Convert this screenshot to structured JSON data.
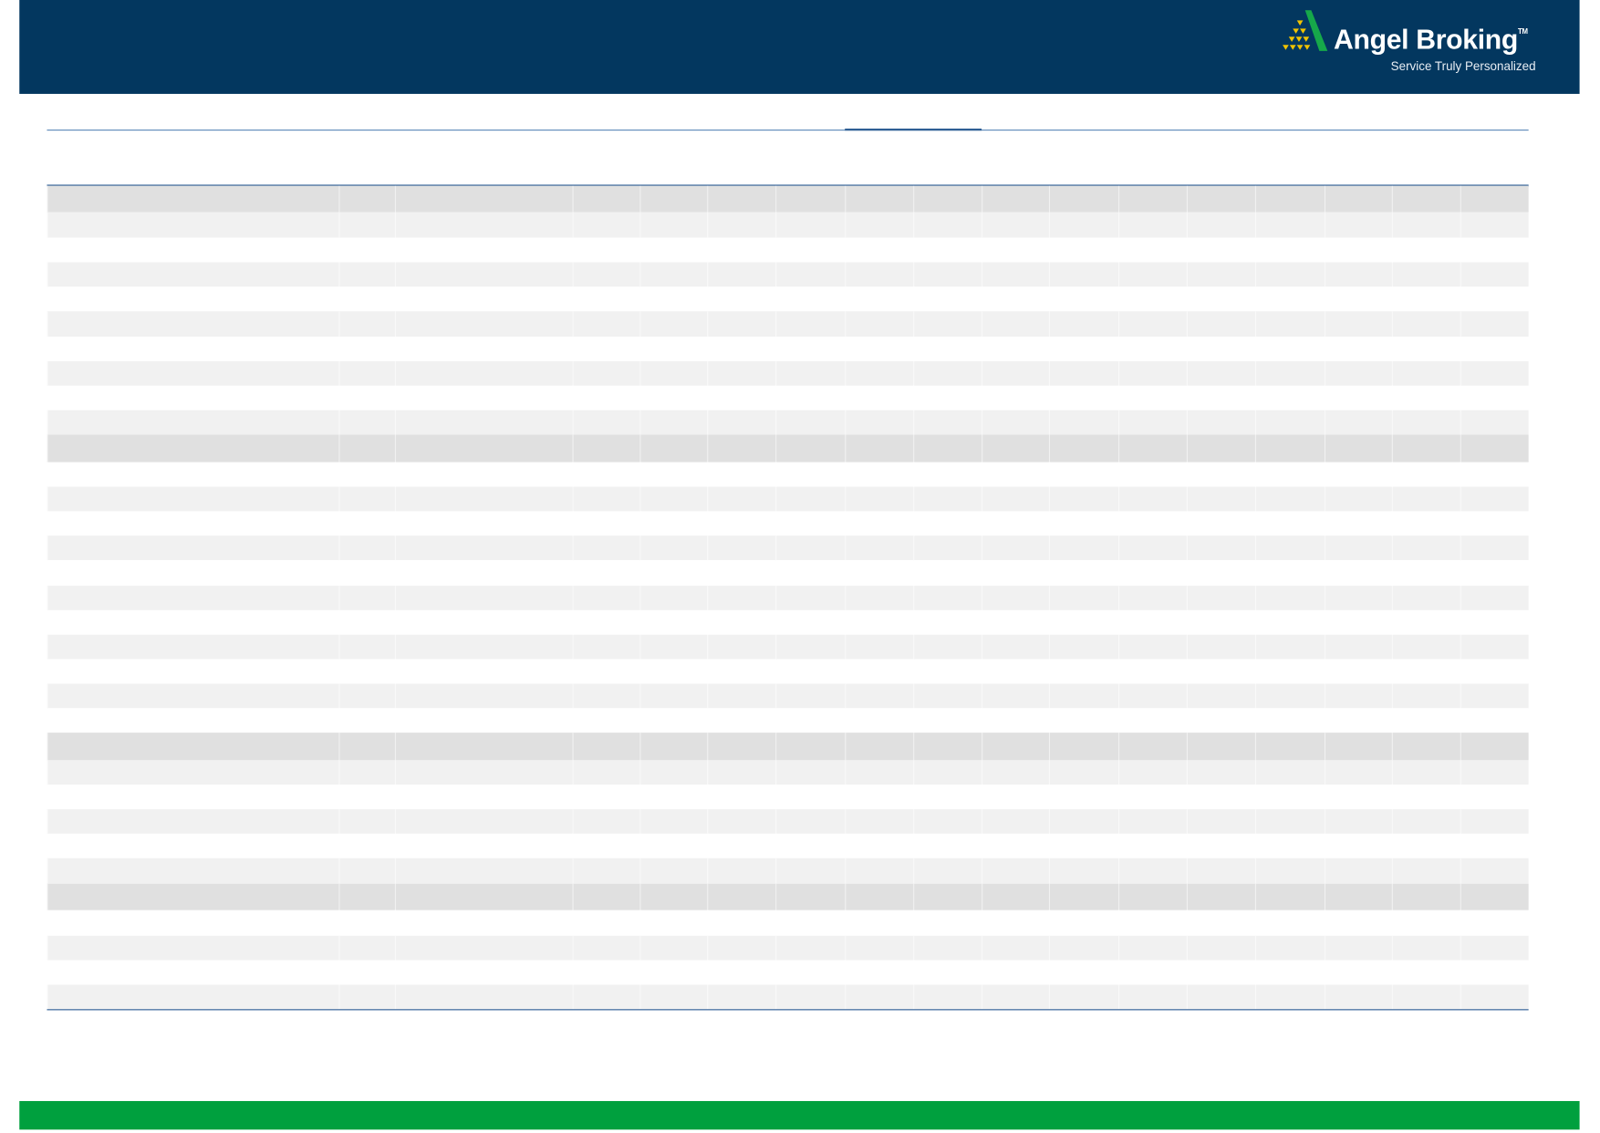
{
  "header": {
    "logo": {
      "name": "Angel Broking",
      "trademark": "TM",
      "tagline": "Service Truly Personalized",
      "colors": {
        "background": "#03375f",
        "triangle": "#16a84a",
        "coins": "#f2c300"
      }
    }
  },
  "table": {
    "column_count": 17,
    "rows": []
  },
  "colors": {
    "rule": "#2a5a92",
    "footer_bar": "#00a03e",
    "section_row": "#e0e0e0",
    "striped_row": "#f1f1f1"
  }
}
